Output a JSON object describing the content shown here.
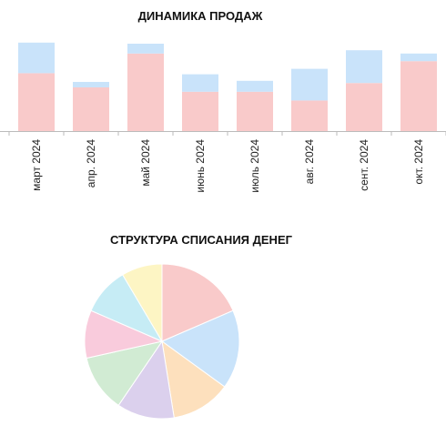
{
  "colors": {
    "background": "#ffffff",
    "axis": "#bbbbbb",
    "text": "#222222"
  },
  "chart_data": [
    {
      "type": "bar",
      "stacked": true,
      "title": "ДИНАМИКА ПРОДАЖ",
      "categories": [
        "март 2024",
        "апр. 2024",
        "май 2024",
        "июнь 2024",
        "июль 2024",
        "авг. 2024",
        "сент. 2024",
        "окт. 2024"
      ],
      "ylim": [
        0,
        85
      ],
      "grid": false,
      "legend": "none",
      "series": [
        {
          "color": "#f9caca",
          "values": [
            53,
            40,
            71,
            36,
            36,
            28,
            44,
            64
          ]
        },
        {
          "color": "#c9e3fa",
          "values": [
            28,
            5,
            9,
            16,
            10,
            29,
            30,
            7
          ]
        }
      ]
    },
    {
      "type": "pie",
      "title": "СТРУКТУРА СПИСАНИЯ ДЕНЕГ",
      "legend": "none",
      "start_angle_deg": 0,
      "direction": "clockwise",
      "slices": [
        {
          "value": 18.5,
          "color": "#f9caca"
        },
        {
          "value": 16.5,
          "color": "#c9e3fa"
        },
        {
          "value": 12.5,
          "color": "#fde0bd"
        },
        {
          "value": 12.0,
          "color": "#dbd0ed"
        },
        {
          "value": 12.0,
          "color": "#d1ebd3"
        },
        {
          "value": 10.0,
          "color": "#f9cbdc"
        },
        {
          "value": 10.0,
          "color": "#c6ecf5"
        },
        {
          "value": 8.5,
          "color": "#fdf5c4"
        }
      ]
    }
  ]
}
